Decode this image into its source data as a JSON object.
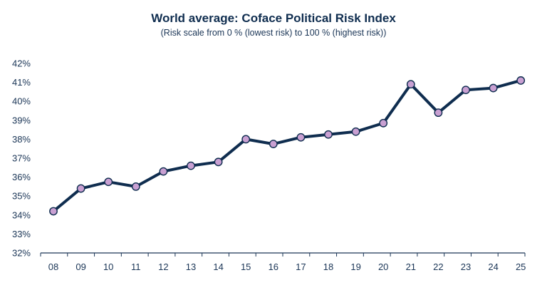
{
  "chart_data": {
    "type": "line",
    "title": "World average: Coface Political Risk Index",
    "subtitle": "(Risk scale from 0 % (lowest risk) to 100 % (highest risk))",
    "xlabel": "",
    "ylabel": "",
    "categories": [
      "08",
      "09",
      "10",
      "11",
      "12",
      "13",
      "14",
      "15",
      "16",
      "17",
      "18",
      "19",
      "20",
      "21",
      "22",
      "23",
      "24",
      "25"
    ],
    "series": [
      {
        "values": [
          34.2,
          35.4,
          35.75,
          35.5,
          36.3,
          36.6,
          36.8,
          38.0,
          37.75,
          38.1,
          38.25,
          38.4,
          38.85,
          40.9,
          39.4,
          40.6,
          40.7,
          41.1
        ]
      }
    ],
    "ylim": [
      32,
      42
    ],
    "yticks": [
      32,
      33,
      34,
      35,
      36,
      37,
      38,
      39,
      40,
      41,
      42
    ],
    "ytick_suffix": "%",
    "grid": false,
    "legend": "none",
    "colors": {
      "line": "#0f2d4f",
      "marker_fill": "#c9a0d2",
      "marker_stroke": "#0f2d4f",
      "axis": "#1a3556",
      "text": "#1a3556"
    }
  }
}
